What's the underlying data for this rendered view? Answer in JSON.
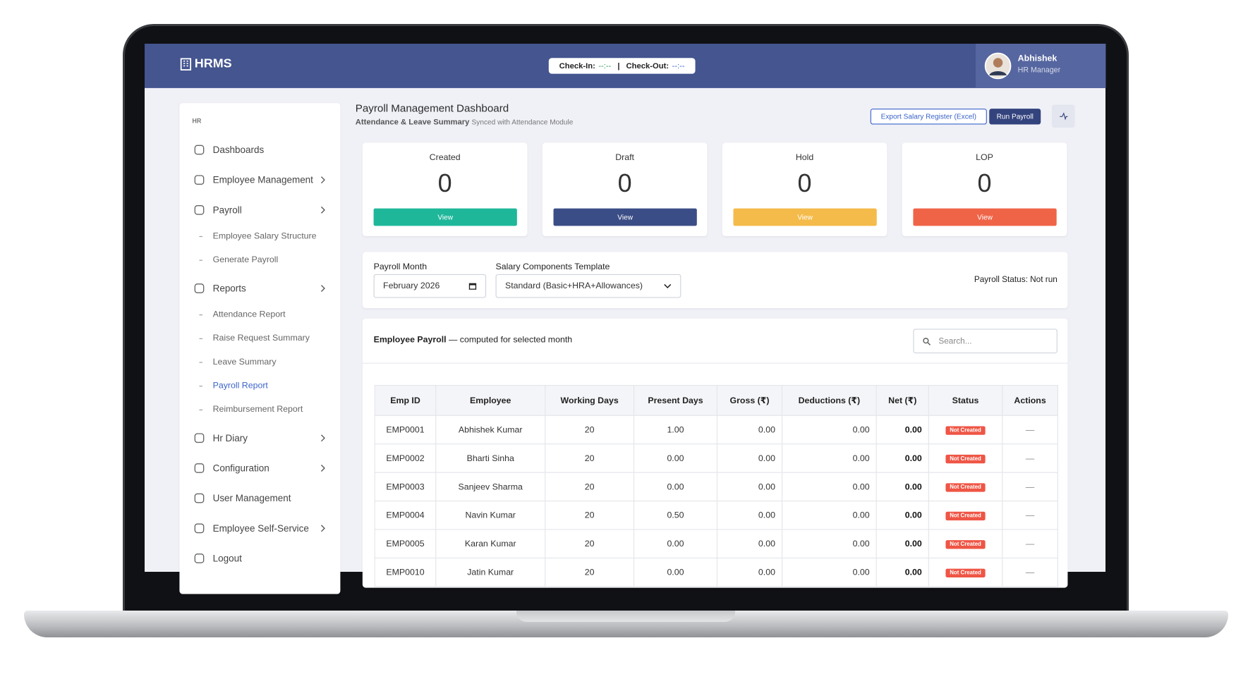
{
  "header": {
    "app_name": "HRMS",
    "check_in_label": "Check-In:",
    "check_in_value": "--:--",
    "check_out_label": "Check-Out:",
    "check_out_value": "--:--",
    "separator": "|",
    "user_name": "Abhishek",
    "user_role": "HR Manager"
  },
  "sidebar": {
    "section": "HR",
    "items": [
      {
        "label": "Dashboards"
      },
      {
        "label": "Employee Management",
        "chevron": true
      },
      {
        "label": "Payroll",
        "chevron": true,
        "children": [
          "Employee Salary Structure",
          "Generate Payroll"
        ]
      },
      {
        "label": "Reports",
        "chevron": true,
        "children": [
          "Attendance Report",
          "Raise Request Summary",
          "Leave Summary",
          "Payroll Report",
          "Reimbursement Report"
        ]
      },
      {
        "label": "Hr Diary",
        "chevron": true
      },
      {
        "label": "Configuration",
        "chevron": true
      },
      {
        "label": "User Management"
      },
      {
        "label": "Employee Self-Service",
        "chevron": true
      },
      {
        "label": "Logout"
      }
    ]
  },
  "page": {
    "title": "Payroll Management Dashboard",
    "subtitle": "Attendance & Leave Summary",
    "subtitle_note": "Synced with Attendance Module",
    "export_button": "Export Salary Register (Excel)",
    "run_button": "Run Payroll"
  },
  "stats": [
    {
      "label": "Created",
      "value": 0,
      "button": "View"
    },
    {
      "label": "Draft",
      "value": 0,
      "button": "View"
    },
    {
      "label": "Hold",
      "value": 0,
      "button": "View"
    },
    {
      "label": "LOP",
      "value": 0,
      "button": "View"
    }
  ],
  "filters": {
    "month_label": "Payroll Month",
    "month_value": "February 2026",
    "template_label": "Salary Components Template",
    "template_value": "Standard (Basic+HRA+Allowances)",
    "status": "Payroll Status: Not run"
  },
  "table": {
    "title": "Employee Payroll",
    "title_note": "— computed for selected month",
    "search_placeholder": "Search...",
    "columns": [
      "Emp ID",
      "Employee",
      "Working Days",
      "Present Days",
      "Gross (₹)",
      "Deductions (₹)",
      "Net (₹)",
      "Status",
      "Actions"
    ],
    "rows": [
      [
        "EMP0001",
        "Abhishek Kumar",
        20,
        "1.00",
        "0.00",
        "0.00",
        "0.00",
        "Not Created",
        "—"
      ],
      [
        "EMP0002",
        "Bharti Sinha",
        20,
        "0.00",
        "0.00",
        "0.00",
        "0.00",
        "Not Created",
        "—"
      ],
      [
        "EMP0003",
        "Sanjeev Sharma",
        20,
        "0.00",
        "0.00",
        "0.00",
        "0.00",
        "Not Created",
        "—"
      ],
      [
        "EMP0004",
        "Navin Kumar",
        20,
        "0.50",
        "0.00",
        "0.00",
        "0.00",
        "Not Created",
        "—"
      ],
      [
        "EMP0005",
        "Karan Kumar",
        20,
        "0.00",
        "0.00",
        "0.00",
        "0.00",
        "Not Created",
        "—"
      ],
      [
        "EMP0010",
        "Jatin Kumar",
        20,
        "0.00",
        "0.00",
        "0.00",
        "0.00",
        "Not Created",
        "—"
      ]
    ]
  }
}
